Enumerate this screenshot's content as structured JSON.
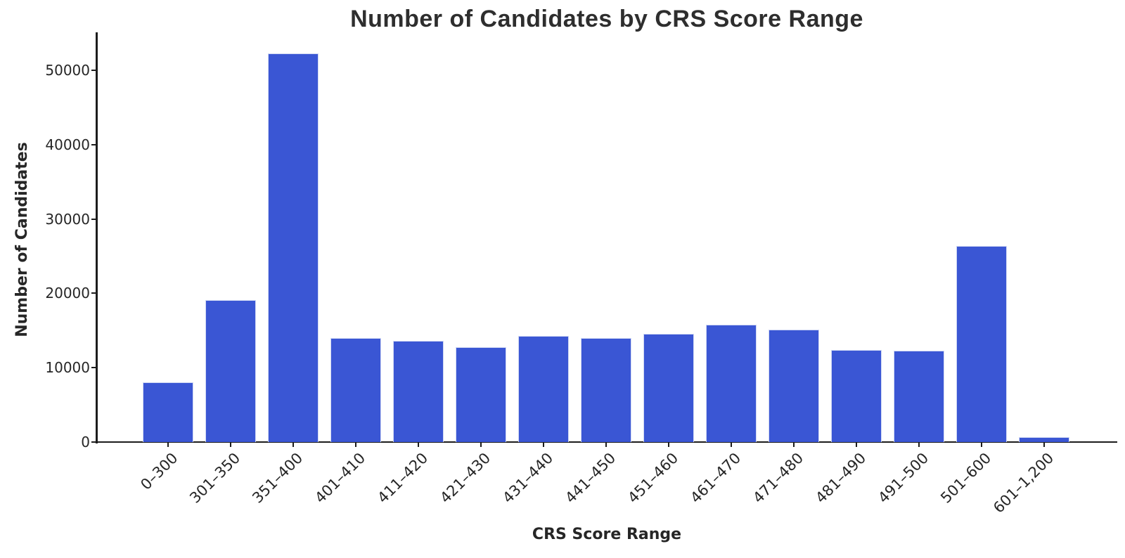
{
  "chart_data": {
    "type": "bar",
    "title": "Number of Candidates by CRS Score Range",
    "xlabel": "CRS Score Range",
    "ylabel": "Number of Candidates",
    "categories": [
      "0–300",
      "301–350",
      "351–400",
      "401–410",
      "411–420",
      "421–430",
      "431–440",
      "441–450",
      "451–460",
      "461–470",
      "471–480",
      "481–490",
      "491–500",
      "501–600",
      "601–1,200"
    ],
    "values": [
      8000,
      19100,
      52300,
      14000,
      13600,
      12800,
      14300,
      14000,
      14600,
      15800,
      15100,
      12400,
      12300,
      26400,
      700
    ],
    "yticks": [
      0,
      10000,
      20000,
      30000,
      40000,
      50000
    ],
    "ylim": [
      0,
      55000
    ],
    "grid": false,
    "legend": "none",
    "bar_color": "#3A56D4",
    "axis_color": "#1c1c1c",
    "text_color": "#262626",
    "title_color": "#2e2e2e"
  }
}
